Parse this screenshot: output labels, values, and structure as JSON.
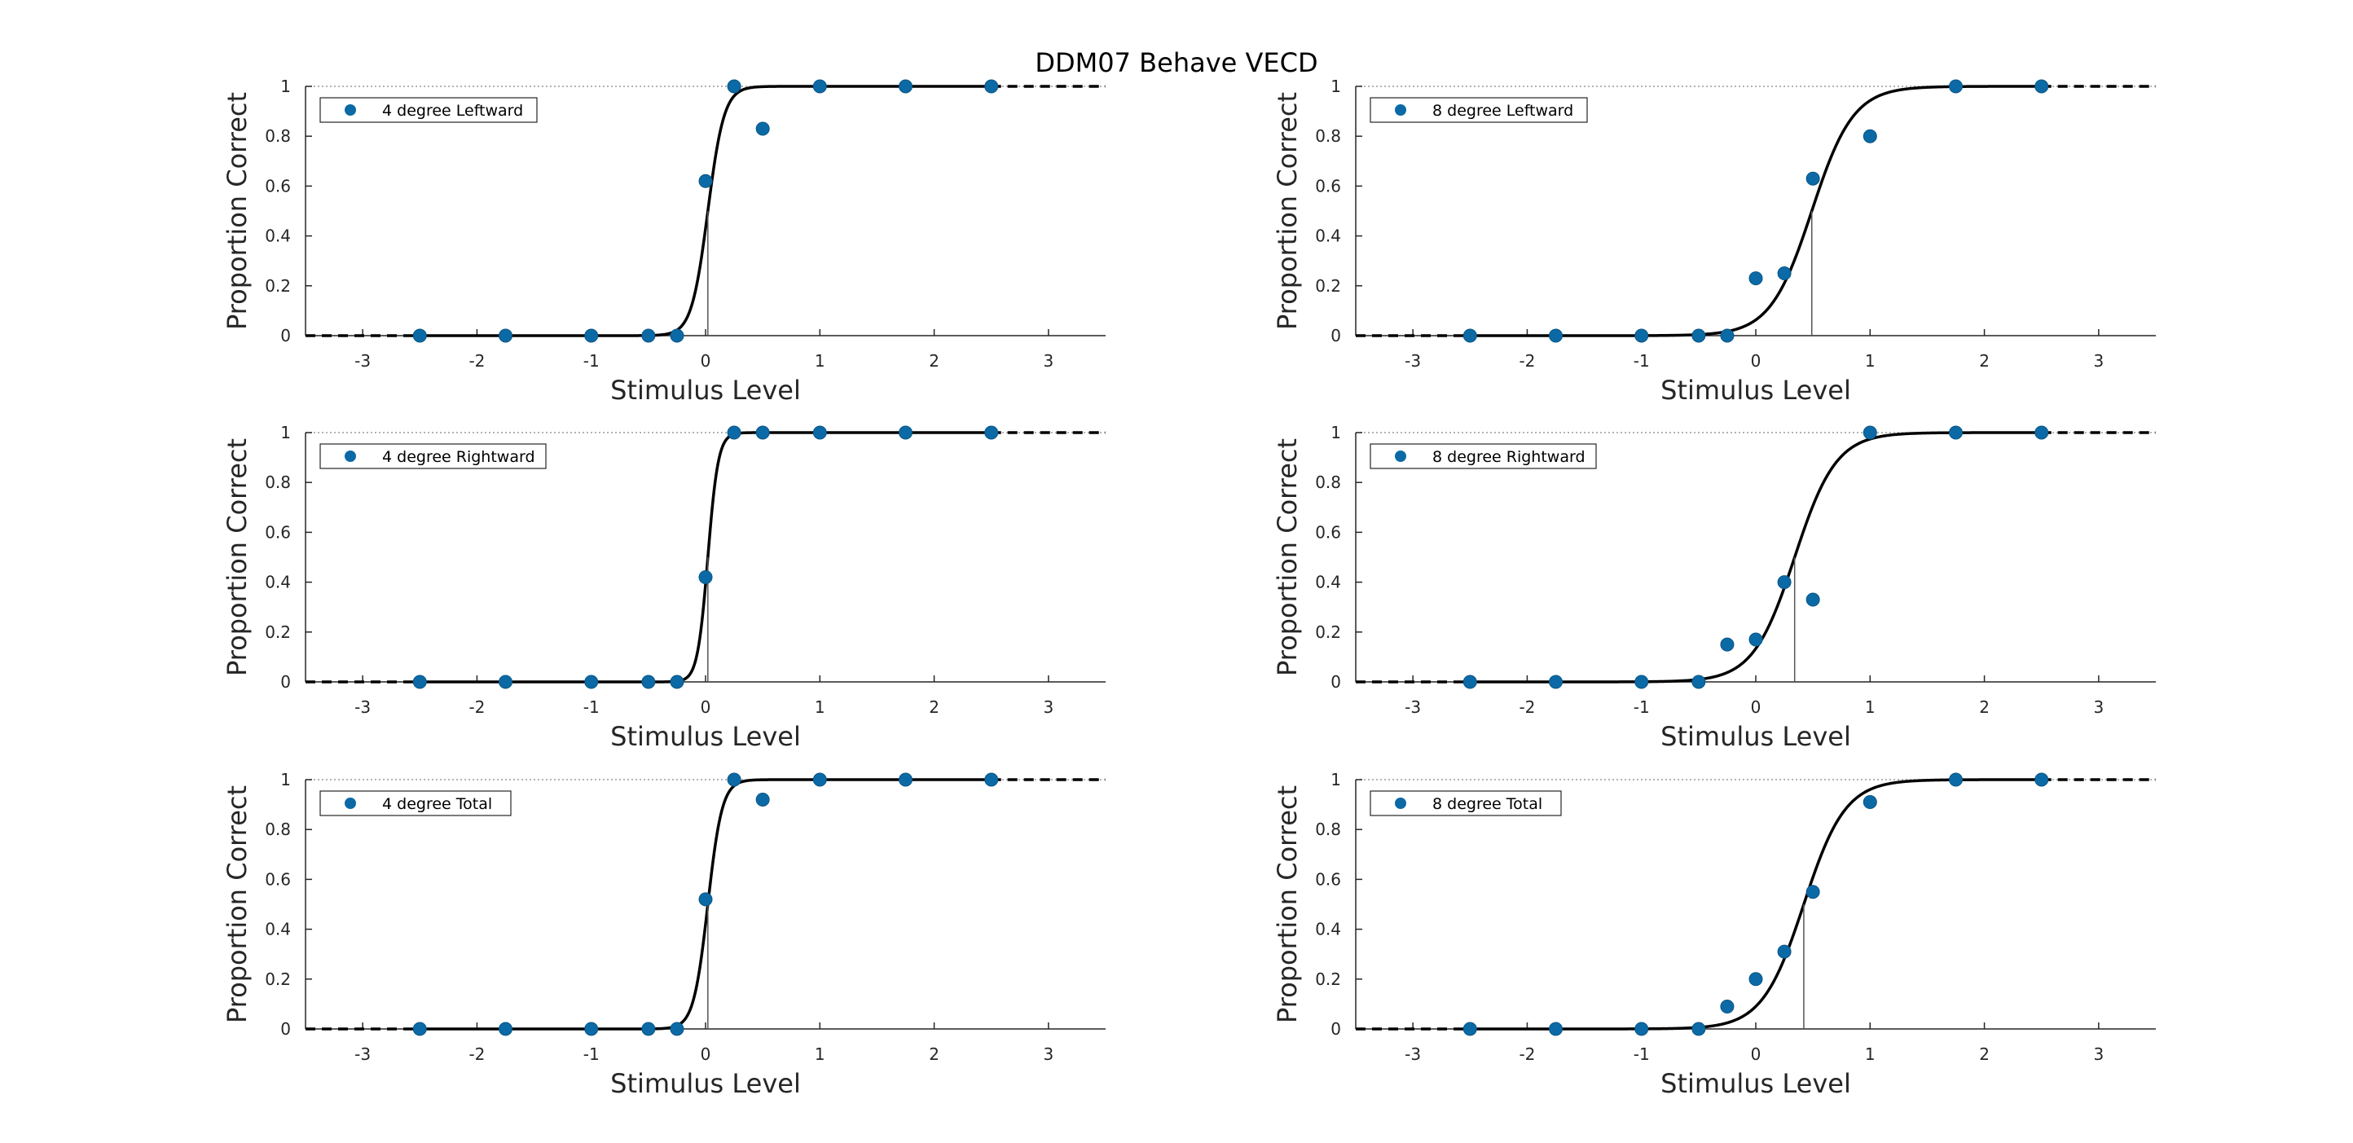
{
  "figure_title": "DDM07 Behave VECD",
  "colors": {
    "marker": "#0b6aa6",
    "curve": "#000000",
    "axis": "#262626"
  },
  "chart_data": [
    {
      "type": "scatter",
      "legend": "4 degree Leftward",
      "legend_position": "top-left",
      "xlabel": "Stimulus Level",
      "ylabel": "Proportion Correct",
      "xlim": [
        -3.5,
        3.5
      ],
      "ylim": [
        0,
        1
      ],
      "xticks": [
        -3,
        -2,
        -1,
        0,
        1,
        2,
        3
      ],
      "yticks": [
        0,
        0.2,
        0.4,
        0.6,
        0.8,
        1
      ],
      "points": {
        "x": [
          -2.5,
          -1.75,
          -1,
          -0.5,
          -0.25,
          0,
          0.25,
          0.5,
          1,
          1.75,
          2.5
        ],
        "y": [
          0,
          0,
          0,
          0,
          0,
          0.62,
          1,
          0.83,
          1,
          1,
          1
        ]
      },
      "fit": {
        "model": "logistic",
        "threshold": 0.02,
        "slope": 14.0
      }
    },
    {
      "type": "scatter",
      "legend": "8 degree Leftward",
      "legend_position": "top-left",
      "xlabel": "Stimulus Level",
      "ylabel": "Proportion Correct",
      "xlim": [
        -3.5,
        3.5
      ],
      "ylim": [
        0,
        1
      ],
      "xticks": [
        -3,
        -2,
        -1,
        0,
        1,
        2,
        3
      ],
      "yticks": [
        0,
        0.2,
        0.4,
        0.6,
        0.8,
        1
      ],
      "points": {
        "x": [
          -2.5,
          -1.75,
          -1,
          -0.5,
          -0.25,
          0,
          0.25,
          0.5,
          1,
          1.75,
          2.5
        ],
        "y": [
          0,
          0,
          0,
          0,
          0,
          0.23,
          0.25,
          0.63,
          0.8,
          1,
          1
        ]
      },
      "fit": {
        "model": "logistic",
        "threshold": 0.49,
        "slope": 5.5
      }
    },
    {
      "type": "scatter",
      "legend": "4 degree Rightward",
      "legend_position": "top-left",
      "xlabel": "Stimulus Level",
      "ylabel": "Proportion Correct",
      "xlim": [
        -3.5,
        3.5
      ],
      "ylim": [
        0,
        1
      ],
      "xticks": [
        -3,
        -2,
        -1,
        0,
        1,
        2,
        3
      ],
      "yticks": [
        0,
        0.2,
        0.4,
        0.6,
        0.8,
        1
      ],
      "points": {
        "x": [
          -2.5,
          -1.75,
          -1,
          -0.5,
          -0.25,
          0,
          0.25,
          0.5,
          1,
          1.75,
          2.5
        ],
        "y": [
          0,
          0,
          0,
          0,
          0,
          0.42,
          1,
          1,
          1,
          1,
          1
        ]
      },
      "fit": {
        "model": "logistic",
        "threshold": 0.02,
        "slope": 22.0
      }
    },
    {
      "type": "scatter",
      "legend": "8 degree Rightward",
      "legend_position": "top-left",
      "xlabel": "Stimulus Level",
      "ylabel": "Proportion Correct",
      "xlim": [
        -3.5,
        3.5
      ],
      "ylim": [
        0,
        1
      ],
      "xticks": [
        -3,
        -2,
        -1,
        0,
        1,
        2,
        3
      ],
      "yticks": [
        0,
        0.2,
        0.4,
        0.6,
        0.8,
        1
      ],
      "points": {
        "x": [
          -2.5,
          -1.75,
          -1,
          -0.5,
          -0.25,
          0,
          0.25,
          0.5,
          1,
          1.75,
          2.5
        ],
        "y": [
          0,
          0,
          0,
          0,
          0.15,
          0.17,
          0.4,
          0.33,
          1,
          1,
          1
        ]
      },
      "fit": {
        "model": "logistic",
        "threshold": 0.34,
        "slope": 5.5
      }
    },
    {
      "type": "scatter",
      "legend": "4 degree Total",
      "legend_position": "top-left",
      "xlabel": "Stimulus Level",
      "ylabel": "Proportion Correct",
      "xlim": [
        -3.5,
        3.5
      ],
      "ylim": [
        0,
        1
      ],
      "xticks": [
        -3,
        -2,
        -1,
        0,
        1,
        2,
        3
      ],
      "yticks": [
        0,
        0.2,
        0.4,
        0.6,
        0.8,
        1
      ],
      "points": {
        "x": [
          -2.5,
          -1.75,
          -1,
          -0.5,
          -0.25,
          0,
          0.25,
          0.5,
          1,
          1.75,
          2.5
        ],
        "y": [
          0,
          0,
          0,
          0,
          0,
          0.52,
          1,
          0.92,
          1,
          1,
          1
        ]
      },
      "fit": {
        "model": "logistic",
        "threshold": 0.02,
        "slope": 16.0
      }
    },
    {
      "type": "scatter",
      "legend": "8 degree Total",
      "legend_position": "top-left",
      "xlabel": "Stimulus Level",
      "ylabel": "Proportion Correct",
      "xlim": [
        -3.5,
        3.5
      ],
      "ylim": [
        0,
        1
      ],
      "xticks": [
        -3,
        -2,
        -1,
        0,
        1,
        2,
        3
      ],
      "yticks": [
        0,
        0.2,
        0.4,
        0.6,
        0.8,
        1
      ],
      "points": {
        "x": [
          -2.5,
          -1.75,
          -1,
          -0.5,
          -0.25,
          0,
          0.25,
          0.5,
          1,
          1.75,
          2.5
        ],
        "y": [
          0,
          0,
          0,
          0,
          0.09,
          0.2,
          0.31,
          0.55,
          0.91,
          1,
          1
        ]
      },
      "fit": {
        "model": "logistic",
        "threshold": 0.42,
        "slope": 5.5
      }
    }
  ]
}
